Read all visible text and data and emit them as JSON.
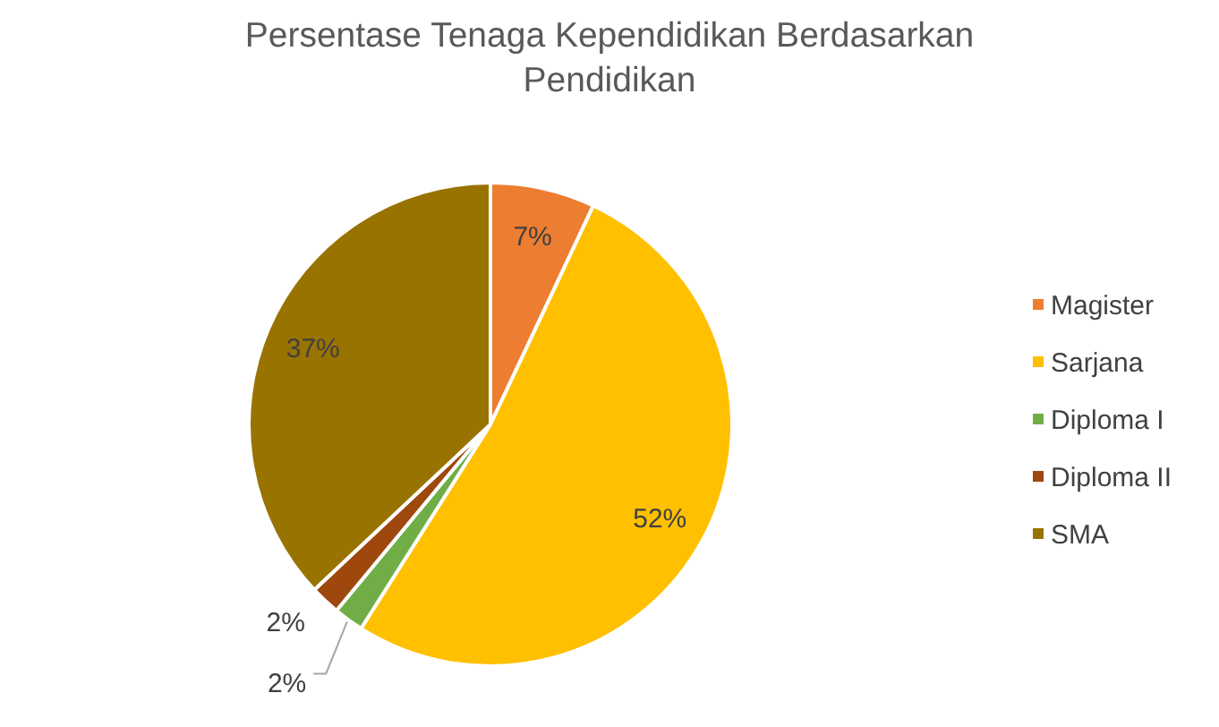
{
  "chart_data": {
    "type": "pie",
    "title": "Persentase Tenaga Kependidikan Berdasarkan Pendidikan",
    "categories": [
      "Magister",
      "Sarjana",
      "Diploma I",
      "Diploma II",
      "SMA"
    ],
    "values": [
      7,
      52,
      2,
      2,
      37
    ],
    "colors": [
      "#ed7d31",
      "#ffc000",
      "#70ad47",
      "#9e480e",
      "#997300"
    ],
    "value_labels": [
      "7%",
      "52%",
      "2%",
      "2%",
      "37%"
    ],
    "legend": "right"
  }
}
